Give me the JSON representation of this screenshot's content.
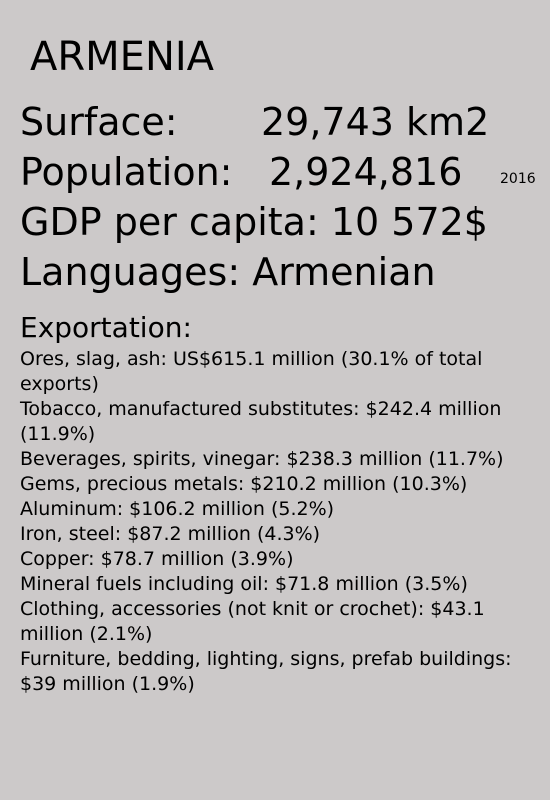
{
  "country": "ARMENIA",
  "surface": {
    "label": "Surface:",
    "value": "29,743 km2"
  },
  "population": {
    "label": "Population:",
    "value": "2,924,816",
    "year": "2016"
  },
  "gdp": {
    "text": "GDP per capita: 10 572$"
  },
  "languages": {
    "text": "Languages: Armenian"
  },
  "exportation": {
    "title": "Exportation:",
    "items": [
      "Ores, slag, ash: US$615.1 million (30.1% of total exports)",
      "Tobacco, manufactured substitutes: $242.4 million (11.9%)",
      "Beverages, spirits, vinegar: $238.3 million (11.7%)",
      "Gems, precious metals: $210.2 million (10.3%)",
      "Aluminum: $106.2 million (5.2%)",
      "Iron, steel: $87.2 million (4.3%)",
      "Copper: $78.7 million (3.9%)",
      "Mineral fuels including oil: $71.8 million (3.5%)",
      "Clothing, accessories (not knit or crochet): $43.1 million (2.1%)",
      "Furniture, bedding, lighting, signs, prefab buildings: $39 million (1.9%)"
    ]
  },
  "colors": {
    "background": "#ccc9c9",
    "text": "#000000"
  }
}
